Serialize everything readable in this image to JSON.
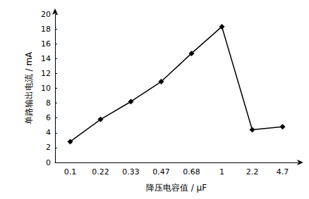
{
  "chart_data": {
    "type": "line",
    "x_label": "降压电容值 / μF",
    "y_label": "单路输出电流 / mA",
    "categories": [
      "0.1",
      "0.22",
      "0.33",
      "0.47",
      "0.68",
      "1",
      "2.2",
      "4.7"
    ],
    "values": [
      2.8,
      5.8,
      8.2,
      10.9,
      14.7,
      18.3,
      4.4,
      4.8
    ],
    "color": "#000000",
    "marker": "diamond",
    "line_style": "solid",
    "ylim": [
      0,
      20
    ],
    "yticks": [
      0,
      2,
      4,
      6,
      8,
      10,
      12,
      14,
      16,
      18,
      20
    ],
    "grid": false
  }
}
